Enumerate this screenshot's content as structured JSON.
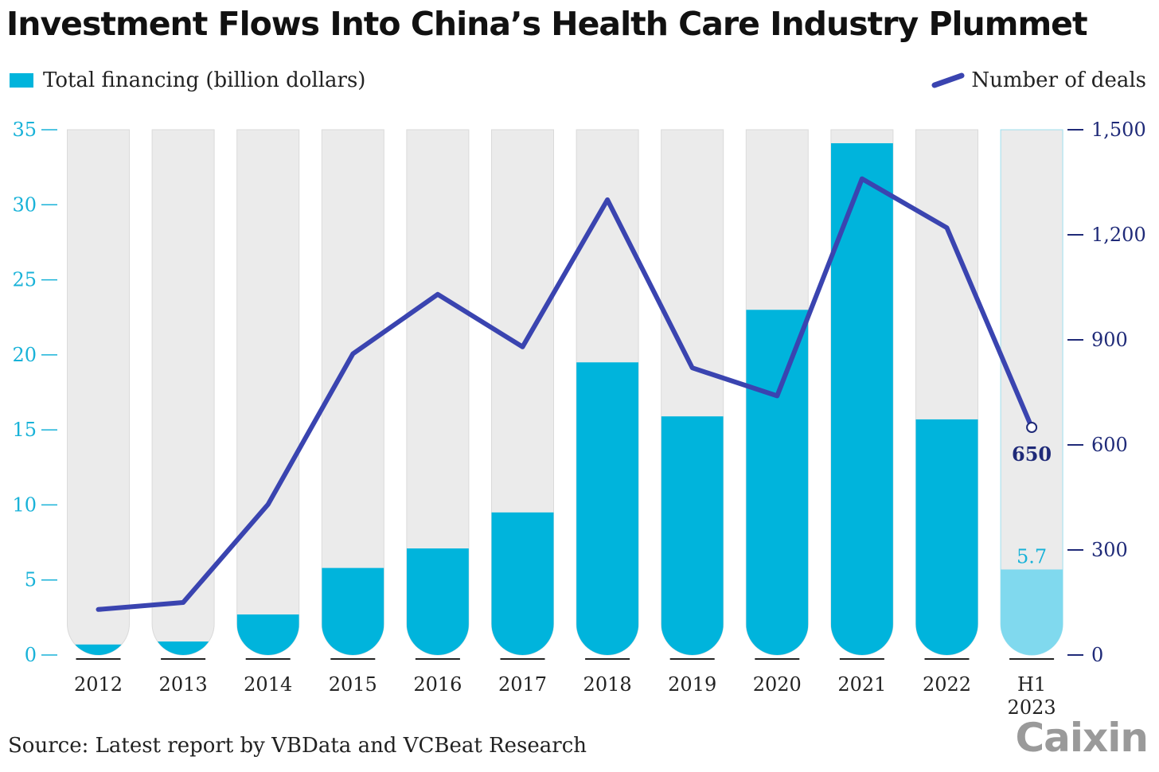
{
  "title": "Investment Flows Into China’s Health Care Industry Plummet",
  "legend": {
    "bars_label": "Total financing (billion dollars)",
    "line_label": "Number of deals"
  },
  "source": "Source: Latest report by VBData and VCBeat Research",
  "logo": "Caixin",
  "colors": {
    "bar": "#00b4dc",
    "bar_highlight": "#80d9ee",
    "track": "#ebebeb",
    "line": "#3a44b0",
    "left_axis": "#18b2d8",
    "right_axis": "#1f2a78"
  },
  "chart_data": {
    "type": "bar",
    "categories": [
      "2012",
      "2013",
      "2014",
      "2015",
      "2016",
      "2017",
      "2018",
      "2019",
      "2020",
      "2021",
      "2022",
      "H1\n2023"
    ],
    "series": [
      {
        "name": "Total financing (billion dollars)",
        "type": "bar",
        "axis": "left",
        "values": [
          0.7,
          0.9,
          2.7,
          5.8,
          7.1,
          9.5,
          19.5,
          15.9,
          23.0,
          34.1,
          15.7,
          5.7
        ]
      },
      {
        "name": "Number of deals",
        "type": "line",
        "axis": "right",
        "values": [
          130,
          150,
          430,
          860,
          1030,
          880,
          1300,
          820,
          740,
          1360,
          1220,
          650
        ]
      }
    ],
    "left_axis": {
      "min": 0,
      "max": 35,
      "ticks": [
        0,
        5,
        10,
        15,
        20,
        25,
        30,
        35
      ]
    },
    "right_axis": {
      "min": 0,
      "max": 1500,
      "ticks": [
        "0",
        "300",
        "600",
        "900",
        "1,200",
        "1,500"
      ],
      "tick_values": [
        0,
        300,
        600,
        900,
        1200,
        1500
      ]
    },
    "annotations": {
      "last_bar_label": "5.7",
      "last_line_label": "650"
    },
    "legend_position": "top"
  }
}
